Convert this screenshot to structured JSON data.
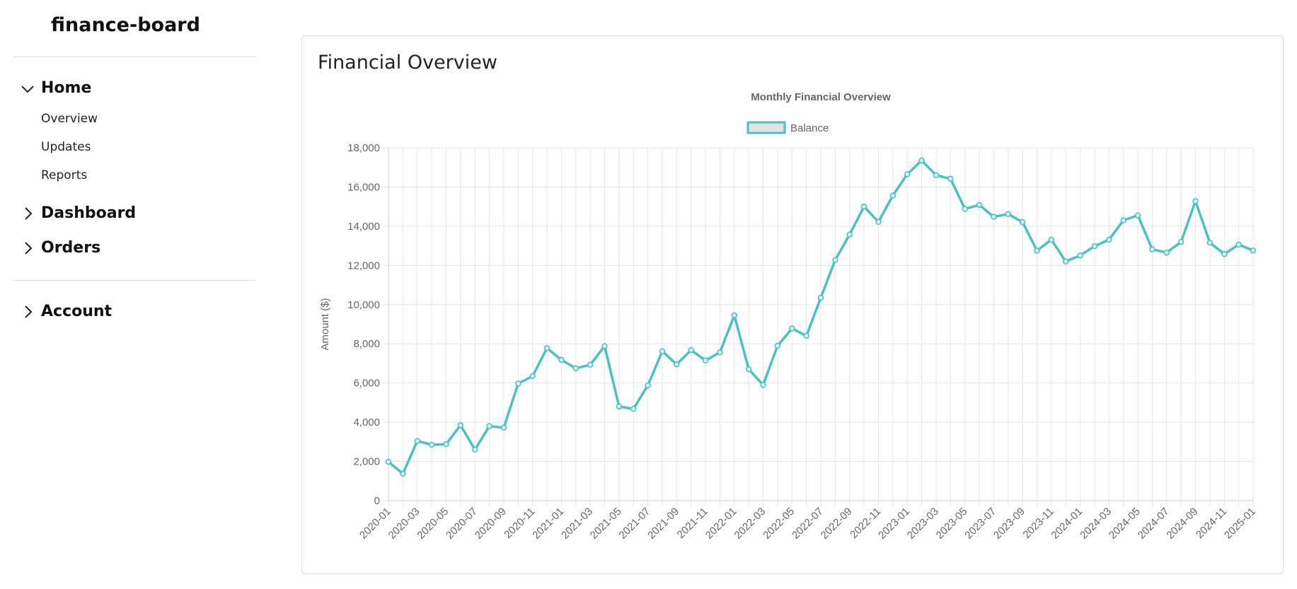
{
  "app": {
    "brand": "finance-board"
  },
  "sidebar": {
    "groups": [
      {
        "label": "Home",
        "expanded": true,
        "items": [
          "Overview",
          "Updates",
          "Reports"
        ]
      },
      {
        "label": "Dashboard",
        "expanded": false
      },
      {
        "label": "Orders",
        "expanded": false
      },
      {
        "label": "Account",
        "expanded": false
      }
    ]
  },
  "card": {
    "title": "Financial Overview"
  },
  "colors": {
    "series": "#4bc0c0",
    "grid": "#e5e5e5",
    "text": "#666666"
  },
  "chart_data": {
    "type": "line",
    "title": "Monthly Financial Overview",
    "ylabel": "Amount ($)",
    "xlabel": "",
    "ylim": [
      0,
      18000
    ],
    "yticks": [
      0,
      2000,
      4000,
      6000,
      8000,
      10000,
      12000,
      14000,
      16000,
      18000
    ],
    "ytick_labels": [
      "0",
      "2,000",
      "4,000",
      "6,000",
      "8,000",
      "10,000",
      "12,000",
      "14,000",
      "16,000",
      "18,000"
    ],
    "legend": "top-center",
    "grid": true,
    "x": [
      "2020-01",
      "2020-02",
      "2020-03",
      "2020-04",
      "2020-05",
      "2020-06",
      "2020-07",
      "2020-08",
      "2020-09",
      "2020-10",
      "2020-11",
      "2020-12",
      "2021-01",
      "2021-02",
      "2021-03",
      "2021-04",
      "2021-05",
      "2021-06",
      "2021-07",
      "2021-08",
      "2021-09",
      "2021-10",
      "2021-11",
      "2021-12",
      "2022-01",
      "2022-02",
      "2022-03",
      "2022-04",
      "2022-05",
      "2022-06",
      "2022-07",
      "2022-08",
      "2022-09",
      "2022-10",
      "2022-11",
      "2022-12",
      "2023-01",
      "2023-02",
      "2023-03",
      "2023-04",
      "2023-05",
      "2023-06",
      "2023-07",
      "2023-08",
      "2023-09",
      "2023-10",
      "2023-11",
      "2023-12",
      "2024-01",
      "2024-02",
      "2024-03",
      "2024-04",
      "2024-05",
      "2024-06",
      "2024-07",
      "2024-08",
      "2024-09",
      "2024-10",
      "2024-11",
      "2024-12",
      "2025-01"
    ],
    "series": [
      {
        "name": "Balance",
        "values": [
          1980,
          1370,
          3040,
          2850,
          2880,
          3850,
          2600,
          3800,
          3720,
          5970,
          6350,
          7780,
          7180,
          6750,
          6930,
          7880,
          4800,
          4680,
          5880,
          7620,
          6950,
          7680,
          7150,
          7560,
          9450,
          6700,
          5900,
          7900,
          8780,
          8410,
          10350,
          12280,
          13570,
          15000,
          14220,
          15560,
          16650,
          17350,
          16600,
          16420,
          14880,
          15080,
          14480,
          14620,
          14210,
          12750,
          13310,
          12200,
          12510,
          12980,
          13310,
          14300,
          14550,
          12820,
          12650,
          13200,
          15280,
          13160,
          12580,
          13060,
          12760
        ]
      }
    ]
  }
}
